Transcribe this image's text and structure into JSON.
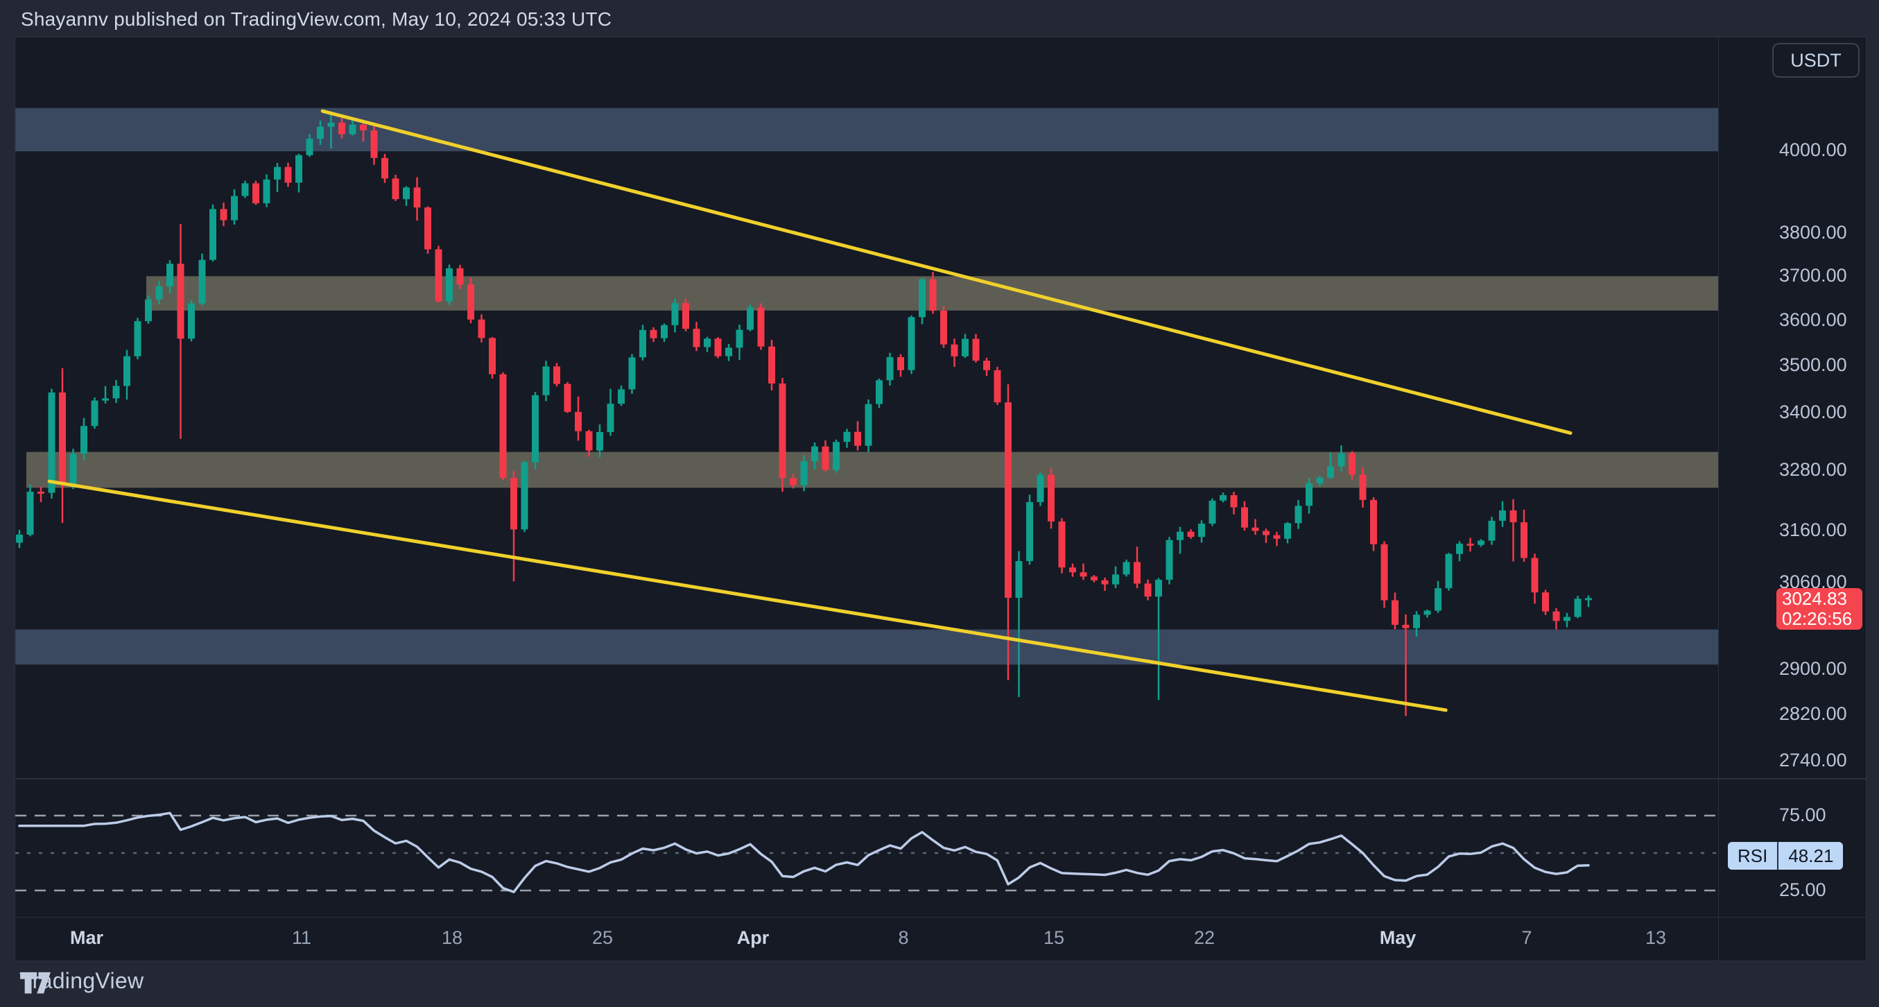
{
  "header": {
    "title": "Shayannv published on TradingView.com, May 10, 2024 05:33 UTC"
  },
  "footer": {
    "brand": "TradingView"
  },
  "axis": {
    "currency_button": "USDT",
    "price_labels": [
      {
        "text": "4000.00",
        "price": 4000
      },
      {
        "text": "3800.00",
        "price": 3800
      },
      {
        "text": "3700.00",
        "price": 3700
      },
      {
        "text": "3600.00",
        "price": 3600
      },
      {
        "text": "3500.00",
        "price": 3500
      },
      {
        "text": "3400.00",
        "price": 3400
      },
      {
        "text": "3280.00",
        "price": 3280
      },
      {
        "text": "3160.00",
        "price": 3160
      },
      {
        "text": "3060.00",
        "price": 3060
      },
      {
        "text": "2900.00",
        "price": 2900
      },
      {
        "text": "2820.00",
        "price": 2820
      },
      {
        "text": "2740.00",
        "price": 2740
      }
    ],
    "time_ticks": [
      {
        "text": "Mar",
        "day": 0,
        "major": true
      },
      {
        "text": "11",
        "day": 10,
        "major": false
      },
      {
        "text": "18",
        "day": 17,
        "major": false
      },
      {
        "text": "25",
        "day": 24,
        "major": false
      },
      {
        "text": "Apr",
        "day": 31,
        "major": true
      },
      {
        "text": "8",
        "day": 38,
        "major": false
      },
      {
        "text": "15",
        "day": 45,
        "major": false
      },
      {
        "text": "22",
        "day": 52,
        "major": false
      },
      {
        "text": "May",
        "day": 61,
        "major": true
      },
      {
        "text": "7",
        "day": 67,
        "major": false
      },
      {
        "text": "13",
        "day": 73,
        "major": false
      }
    ],
    "rsi_labels": [
      {
        "text": "75.00",
        "value": 75
      },
      {
        "text": "25.00",
        "value": 25
      }
    ]
  },
  "badges": {
    "price": {
      "value": "3024.83",
      "countdown": "02:26:56"
    },
    "rsi": {
      "name": "RSI",
      "value": "48.21"
    }
  },
  "colors": {
    "up": "#10a08d",
    "down": "#f4394b",
    "trendline": "#f0d02c",
    "zone_blue": "#3a4960",
    "zone_gray": "#5e5d53",
    "badge_red": "#f4454f",
    "rsi_line": "#bccbe8",
    "rsi_badge_bg": "#bdd7f7",
    "dash_strong": "#97a1b0",
    "dash_weak": "#5c6678"
  },
  "chart_data": {
    "type": "candlestick",
    "quote_currency": "USDT",
    "timeframe_days_per_candle": 0.5,
    "scale": "log",
    "ylim": [
      2700,
      4150
    ],
    "grid": "off",
    "price_ticks": [
      4000,
      3800,
      3700,
      3600,
      3500,
      3400,
      3280,
      3160,
      3060,
      2900,
      2820,
      2740
    ],
    "zones": [
      {
        "kind": "resistance",
        "color_key": "zone_blue",
        "price_top": 4107,
        "price_bottom": 3998,
        "start_day": -3.35
      },
      {
        "kind": "supply",
        "color_key": "zone_gray",
        "price_top": 3700,
        "price_bottom": 3622,
        "start_day": 2.74
      },
      {
        "kind": "supply",
        "color_key": "zone_gray",
        "price_top": 3318,
        "price_bottom": 3245,
        "start_day": -2.84
      },
      {
        "kind": "support",
        "color_key": "zone_blue",
        "price_top": 2972,
        "price_bottom": 2908,
        "start_day": -3.35
      }
    ],
    "trendlines": [
      {
        "name": "upper-channel",
        "from_day": 10.94,
        "from_price": 4099,
        "to_day": 69.0,
        "to_price": 3357
      },
      {
        "name": "lower-channel",
        "from_day": -1.77,
        "from_price": 3258,
        "to_day": 63.2,
        "to_price": 2827
      }
    ],
    "price_keyframes": [
      [
        -3.2,
        3140
      ],
      [
        -2.8,
        3265
      ],
      [
        -2.5,
        3205
      ],
      [
        -1.9,
        3258
      ],
      [
        -1.6,
        3490
      ],
      [
        -1.4,
        3210
      ],
      [
        -0.9,
        3300
      ],
      [
        -0.4,
        3330
      ],
      [
        0,
        3400
      ],
      [
        0.6,
        3445
      ],
      [
        1,
        3420
      ],
      [
        1.6,
        3485
      ],
      [
        2.1,
        3560
      ],
      [
        2.6,
        3640
      ],
      [
        3.1,
        3655
      ],
      [
        3.6,
        3700
      ],
      [
        4.1,
        3760
      ],
      [
        4.35,
        3550
      ],
      [
        4.85,
        3640
      ],
      [
        5.35,
        3740
      ],
      [
        5.85,
        3860
      ],
      [
        6.35,
        3830
      ],
      [
        6.85,
        3890
      ],
      [
        7.35,
        3920
      ],
      [
        7.85,
        3870
      ],
      [
        8.35,
        3930
      ],
      [
        8.85,
        3960
      ],
      [
        9.35,
        3920
      ],
      [
        9.85,
        3990
      ],
      [
        10.35,
        4030
      ],
      [
        10.85,
        4060
      ],
      [
        11.35,
        4070
      ],
      [
        11.85,
        4040
      ],
      [
        12.35,
        4065
      ],
      [
        12.85,
        4050
      ],
      [
        13.35,
        3980
      ],
      [
        13.85,
        3930
      ],
      [
        14.35,
        3880
      ],
      [
        14.85,
        3910
      ],
      [
        15.35,
        3860
      ],
      [
        15.85,
        3760
      ],
      [
        16.35,
        3640
      ],
      [
        16.85,
        3720
      ],
      [
        17.35,
        3680
      ],
      [
        17.85,
        3600
      ],
      [
        18.35,
        3560
      ],
      [
        18.85,
        3480
      ],
      [
        19.35,
        3260
      ],
      [
        19.85,
        3160
      ],
      [
        20.35,
        3300
      ],
      [
        20.85,
        3440
      ],
      [
        21.35,
        3500
      ],
      [
        21.85,
        3460
      ],
      [
        22.35,
        3400
      ],
      [
        22.85,
        3360
      ],
      [
        23.35,
        3320
      ],
      [
        23.85,
        3360
      ],
      [
        24.35,
        3420
      ],
      [
        24.85,
        3450
      ],
      [
        25.35,
        3520
      ],
      [
        25.85,
        3580
      ],
      [
        26.35,
        3560
      ],
      [
        26.85,
        3590
      ],
      [
        27.35,
        3640
      ],
      [
        27.85,
        3580
      ],
      [
        28.35,
        3540
      ],
      [
        28.85,
        3560
      ],
      [
        29.35,
        3520
      ],
      [
        29.85,
        3540
      ],
      [
        30.35,
        3580
      ],
      [
        30.85,
        3630
      ],
      [
        31.35,
        3540
      ],
      [
        31.85,
        3460
      ],
      [
        32.35,
        3260
      ],
      [
        32.85,
        3250
      ],
      [
        33.35,
        3300
      ],
      [
        33.85,
        3330
      ],
      [
        34.35,
        3280
      ],
      [
        34.85,
        3340
      ],
      [
        35.35,
        3360
      ],
      [
        35.85,
        3330
      ],
      [
        36.35,
        3420
      ],
      [
        36.85,
        3470
      ],
      [
        37.35,
        3520
      ],
      [
        37.85,
        3490
      ],
      [
        38.35,
        3610
      ],
      [
        38.85,
        3695
      ],
      [
        39.35,
        3620
      ],
      [
        39.85,
        3545
      ],
      [
        40.35,
        3520
      ],
      [
        40.85,
        3560
      ],
      [
        41.35,
        3510
      ],
      [
        41.85,
        3490
      ],
      [
        42.35,
        3420
      ],
      [
        42.6,
        3000
      ],
      [
        43.1,
        3065
      ],
      [
        43.6,
        3140
      ],
      [
        44.1,
        3300
      ],
      [
        44.6,
        3240
      ],
      [
        45.1,
        3110
      ],
      [
        45.6,
        3065
      ],
      [
        46.1,
        3095
      ],
      [
        46.6,
        3045
      ],
      [
        47.1,
        3085
      ],
      [
        47.6,
        3025
      ],
      [
        48.1,
        3130
      ],
      [
        48.6,
        3065
      ],
      [
        49.1,
        3050
      ],
      [
        49.6,
        3015
      ],
      [
        50.1,
        3120
      ],
      [
        50.6,
        3165
      ],
      [
        51.1,
        3150
      ],
      [
        51.6,
        3145
      ],
      [
        52.1,
        3205
      ],
      [
        52.6,
        3235
      ],
      [
        53.1,
        3225
      ],
      [
        53.6,
        3185
      ],
      [
        54.1,
        3145
      ],
      [
        54.6,
        3175
      ],
      [
        55.1,
        3125
      ],
      [
        55.6,
        3165
      ],
      [
        56.1,
        3185
      ],
      [
        56.6,
        3235
      ],
      [
        57.1,
        3275
      ],
      [
        57.6,
        3255
      ],
      [
        58.1,
        3325
      ],
      [
        58.6,
        3305
      ],
      [
        59.1,
        3235
      ],
      [
        59.6,
        3205
      ],
      [
        60.1,
        3055
      ],
      [
        60.6,
        2995
      ],
      [
        61.1,
        2965
      ],
      [
        61.6,
        2985
      ],
      [
        62.1,
        3015
      ],
      [
        62.6,
        2998
      ],
      [
        63.1,
        3105
      ],
      [
        63.6,
        3125
      ],
      [
        64.1,
        3145
      ],
      [
        64.6,
        3118
      ],
      [
        65.1,
        3165
      ],
      [
        65.6,
        3195
      ],
      [
        66.1,
        3205
      ],
      [
        66.6,
        3145
      ],
      [
        67.1,
        3065
      ],
      [
        67.6,
        3015
      ],
      [
        68.1,
        2995
      ],
      [
        68.6,
        2980
      ],
      [
        69.1,
        3012
      ],
      [
        69.6,
        3048
      ],
      [
        69.9,
        3026
      ],
      [
        70.3,
        3025
      ]
    ],
    "wick_events": [
      [
        -1.4,
        3495,
        3175
      ],
      [
        4.35,
        3822,
        3345
      ],
      [
        11.35,
        4093,
        4005
      ],
      [
        19.85,
        3210,
        3062
      ],
      [
        42.6,
        3460,
        2880
      ],
      [
        43.1,
        3120,
        2850
      ],
      [
        49.6,
        3060,
        2845
      ],
      [
        61.1,
        3000,
        2817
      ],
      [
        66.1,
        3222,
        3100
      ]
    ],
    "rsi": {
      "period": 14,
      "levels": [
        75,
        50,
        25
      ],
      "last_value": 48.21
    },
    "last_price": 3024.83
  }
}
